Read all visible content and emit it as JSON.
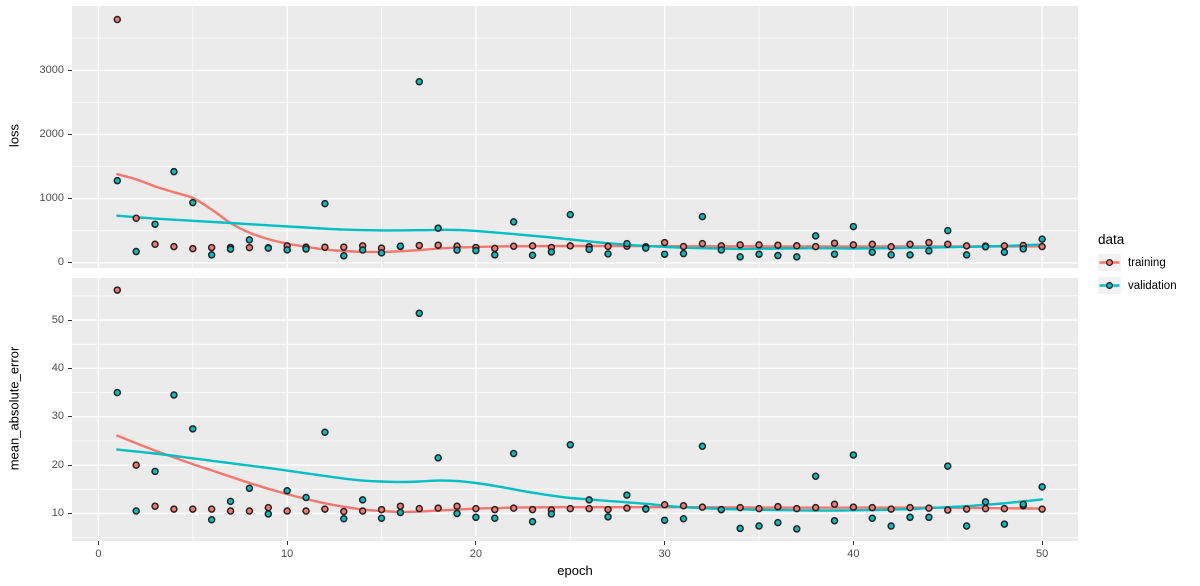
{
  "chart_data": {
    "type": "scatter",
    "description": "Keras training history: points with loess smooth lines, two stacked facets sharing the epoch axis",
    "xlabel": "epoch",
    "x_domain": [
      -1.4,
      51.9
    ],
    "x_ticks_major": [
      0,
      10,
      20,
      30,
      40,
      50
    ],
    "x_ticks_minor": [
      5,
      15,
      25,
      35,
      45
    ],
    "epochs_start": 1,
    "legend": {
      "title": "data",
      "items": [
        {
          "label": "training",
          "color": "#F8766D"
        },
        {
          "label": "validation",
          "color": "#00BFC4"
        }
      ]
    },
    "panels": [
      {
        "ylabel": "loss",
        "y_domain": [
          -80,
          4000
        ],
        "y_ticks_major": [
          0,
          1000,
          2000,
          3000
        ],
        "y_ticks_minor": [
          500,
          1500,
          2500,
          3500
        ],
        "series": [
          {
            "name": "training",
            "color": "#F8766D",
            "values": [
              3790,
              695,
              290,
              253,
              222,
              238,
              240,
              238,
              235,
              264,
              245,
              244,
              245,
              265,
              230,
              255,
              271,
              275,
              260,
              240,
              225,
              259,
              264,
              240,
              264,
              250,
              257,
              260,
              250,
              316,
              255,
              300,
              265,
              280,
              280,
              275,
              266,
              253,
              306,
              280,
              290,
              250,
              290,
              316,
              290,
              265,
              260,
              265,
              270,
              253
            ],
            "smooth": [
              [
                1,
                1380
              ],
              [
                2,
                1300
              ],
              [
                3,
                1190
              ],
              [
                4,
                1100
              ],
              [
                5,
                1010
              ],
              [
                6,
                830
              ],
              [
                7,
                620
              ],
              [
                8,
                470
              ],
              [
                9,
                370
              ],
              [
                10,
                300
              ],
              [
                11,
                250
              ],
              [
                12,
                210
              ],
              [
                13,
                185
              ],
              [
                14,
                172
              ],
              [
                15,
                170
              ],
              [
                16,
                180
              ],
              [
                17,
                198
              ],
              [
                18,
                222
              ],
              [
                19,
                238
              ],
              [
                20,
                248
              ],
              [
                22,
                258
              ],
              [
                24,
                262
              ],
              [
                26,
                262
              ],
              [
                28,
                262
              ],
              [
                30,
                260
              ],
              [
                33,
                258
              ],
              [
                36,
                257
              ],
              [
                40,
                256
              ],
              [
                45,
                255
              ],
              [
                50,
                257
              ]
            ]
          },
          {
            "name": "validation",
            "color": "#00BFC4",
            "values": [
              1280,
              176,
              602,
              1420,
              938,
              124,
              213,
              358,
              229,
              202,
              215,
              922,
              110,
              200,
              155,
              260,
              2820,
              540,
              199,
              191,
              124,
              638,
              118,
              170,
              751,
              210,
              140,
              300,
              230,
              135,
              145,
              720,
              200,
              93,
              135,
              114,
              93,
              420,
              135,
              565,
              166,
              124,
              124,
              187,
              502,
              124,
              250,
              166,
              218,
              370
            ],
            "smooth": [
              [
                1,
                735
              ],
              [
                3,
                690
              ],
              [
                5,
                655
              ],
              [
                7,
                620
              ],
              [
                9,
                585
              ],
              [
                11,
                550
              ],
              [
                13,
                518
              ],
              [
                15,
                505
              ],
              [
                17,
                508
              ],
              [
                18,
                514
              ],
              [
                19,
                512
              ],
              [
                20,
                498
              ],
              [
                22,
                448
              ],
              [
                24,
                395
              ],
              [
                26,
                335
              ],
              [
                28,
                282
              ],
              [
                30,
                248
              ],
              [
                32,
                228
              ],
              [
                34,
                218
              ],
              [
                36,
                224
              ],
              [
                38,
                228
              ],
              [
                40,
                224
              ],
              [
                42,
                228
              ],
              [
                44,
                238
              ],
              [
                46,
                250
              ],
              [
                48,
                262
              ],
              [
                50,
                285
              ]
            ]
          }
        ]
      },
      {
        "ylabel": "mean_absolute_error",
        "y_domain": [
          4.3,
          58.7
        ],
        "y_ticks_major": [
          10,
          20,
          30,
          40,
          50
        ],
        "y_ticks_minor": [
          5,
          15,
          25,
          35,
          45,
          55
        ],
        "series": [
          {
            "name": "training",
            "color": "#F8766D",
            "values": [
              56.2,
              20,
              11.5,
              10.9,
              10.9,
              10.9,
              10.5,
              10.5,
              11.2,
              10.5,
              10.5,
              10.9,
              10.4,
              10.5,
              10.8,
              11.5,
              11,
              11.1,
              11.5,
              11,
              10.8,
              11.1,
              10.8,
              10.7,
              11,
              11,
              10.8,
              11.1,
              11,
              11.8,
              11.6,
              11.3,
              10.8,
              11.2,
              11,
              11.4,
              11,
              11.2,
              11.9,
              11.3,
              11.2,
              10.9,
              11.2,
              11.1,
              10.7,
              10.9,
              11,
              11,
              11.6,
              10.9
            ],
            "smooth": [
              [
                1,
                26.1
              ],
              [
                2,
                24.5
              ],
              [
                3,
                23.0
              ],
              [
                4,
                21.6
              ],
              [
                5,
                20.2
              ],
              [
                6,
                18.9
              ],
              [
                7,
                17.6
              ],
              [
                8,
                16.3
              ],
              [
                9,
                15.1
              ],
              [
                10,
                14.0
              ],
              [
                11,
                13.0
              ],
              [
                12,
                12.1
              ],
              [
                13,
                11.4
              ],
              [
                14,
                10.8
              ],
              [
                15,
                10.5
              ],
              [
                16,
                10.3
              ],
              [
                17,
                10.4
              ],
              [
                18,
                10.6
              ],
              [
                19,
                10.8
              ],
              [
                20,
                11.0
              ],
              [
                21,
                11.1
              ],
              [
                22,
                11.2
              ],
              [
                24,
                11.3
              ],
              [
                28,
                11.3
              ],
              [
                32,
                11.3
              ],
              [
                36,
                11.2
              ],
              [
                40,
                11.2
              ],
              [
                44,
                11.2
              ],
              [
                47,
                11.1
              ],
              [
                50,
                11.0
              ]
            ]
          },
          {
            "name": "validation",
            "color": "#00BFC4",
            "values": [
              35,
              10.5,
              18.7,
              34.5,
              27.5,
              8.7,
              12.5,
              15.2,
              9.9,
              14.7,
              13.3,
              26.8,
              8.9,
              12.8,
              9,
              10.2,
              51.4,
              21.5,
              10,
              9.2,
              9,
              22.4,
              8.3,
              9.9,
              24.2,
              12.8,
              9.3,
              13.8,
              10.9,
              8.6,
              8.9,
              23.9,
              10.8,
              6.9,
              7.4,
              8.1,
              6.8,
              17.7,
              8.5,
              22.1,
              9,
              7.4,
              9.2,
              9.2,
              19.8,
              7.4,
              12.4,
              7.8,
              11.9,
              15.5
            ],
            "smooth": [
              [
                1,
                23.2
              ],
              [
                3,
                22.4
              ],
              [
                5,
                21.4
              ],
              [
                7,
                20.4
              ],
              [
                9,
                19.4
              ],
              [
                11,
                18.3
              ],
              [
                13,
                17.2
              ],
              [
                14,
                16.8
              ],
              [
                15,
                16.6
              ],
              [
                16,
                16.5
              ],
              [
                17,
                16.6
              ],
              [
                18,
                16.8
              ],
              [
                19,
                16.7
              ],
              [
                20,
                16.3
              ],
              [
                21,
                15.7
              ],
              [
                22,
                15.0
              ],
              [
                23,
                14.3
              ],
              [
                24,
                13.7
              ],
              [
                25,
                13.2
              ],
              [
                26,
                12.9
              ],
              [
                27,
                12.6
              ],
              [
                28,
                12.3
              ],
              [
                29,
                12.0
              ],
              [
                30,
                11.6
              ],
              [
                31,
                11.3
              ],
              [
                32,
                11.1
              ],
              [
                33,
                10.95
              ],
              [
                34,
                10.85
              ],
              [
                35,
                10.75
              ],
              [
                36,
                10.7
              ],
              [
                37,
                10.65
              ],
              [
                38,
                10.6
              ],
              [
                39,
                10.6
              ],
              [
                40,
                10.65
              ],
              [
                41,
                10.7
              ],
              [
                42,
                10.8
              ],
              [
                43,
                10.9
              ],
              [
                44,
                11.1
              ],
              [
                45,
                11.3
              ],
              [
                46,
                11.5
              ],
              [
                47,
                11.8
              ],
              [
                48,
                12.1
              ],
              [
                49,
                12.5
              ],
              [
                50,
                12.9
              ]
            ]
          }
        ]
      }
    ],
    "style": {
      "panel_bg": "#EBEBEB",
      "grid_color": "#FFFFFF",
      "tick_label_color": "#4d4d4d",
      "point_stroke": "#222222",
      "legend_key_bg": "#F2F2F2"
    }
  }
}
